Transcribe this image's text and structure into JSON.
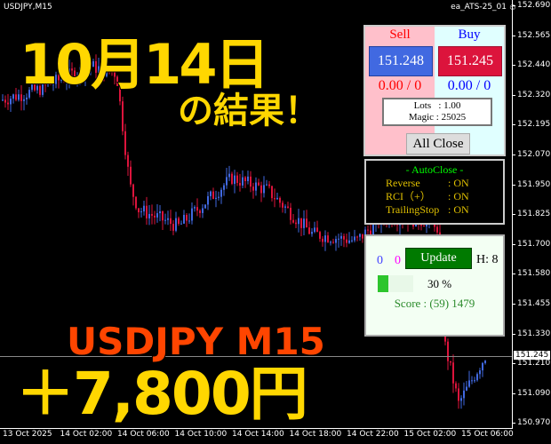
{
  "header": {
    "symbol": "USDJPY,M15",
    "ea_name": "ea_ATS-25_01"
  },
  "overlay": {
    "date": "10月14日",
    "result": "の結果！",
    "pair": "USDJPY M15",
    "profit": "＋7,800円"
  },
  "price_axis": {
    "labels": [
      "152.690",
      "152.565",
      "152.440",
      "152.320",
      "152.195",
      "152.070",
      "151.950",
      "151.825",
      "151.700",
      "151.580",
      "151.455",
      "151.330",
      "151.210",
      "151.090",
      "150.970"
    ],
    "current": "151.245"
  },
  "time_axis": [
    "13 Oct 2025",
    "14 Oct 02:00",
    "14 Oct 06:00",
    "14 Oct 10:00",
    "14 Oct 14:00",
    "14 Oct 18:00",
    "14 Oct 22:00",
    "15 Oct 02:00",
    "15 Oct 06:00"
  ],
  "trade_panel": {
    "sell_label": "Sell",
    "buy_label": "Buy",
    "sell_price": "151.248",
    "buy_price": "151.245",
    "sell_pl": "0.00 / 0",
    "buy_pl": "0.00 / 0",
    "lots": "Lots   : 1.00",
    "magic": "Magic : 25025",
    "all_close": "All Close"
  },
  "autoclose": {
    "title": "- AutoClose -",
    "rows": [
      {
        "k": "Reverse",
        "v": ": ON"
      },
      {
        "k": "RCI（+）",
        "v": ": ON"
      },
      {
        "k": "TrailingStop",
        "v": ": ON"
      }
    ]
  },
  "score_panel": {
    "count_a": "0",
    "count_b": "0",
    "update": "Update",
    "h": "H: 8",
    "progress_percent": 30,
    "progress_label": "30 %",
    "score": "Score : (59) 1479"
  },
  "colors": {
    "bull": "#4169e1",
    "bear": "#dc143c",
    "accent_yellow": "#ffd700",
    "accent_orange": "#ff4500",
    "green_button": "#007a00"
  }
}
